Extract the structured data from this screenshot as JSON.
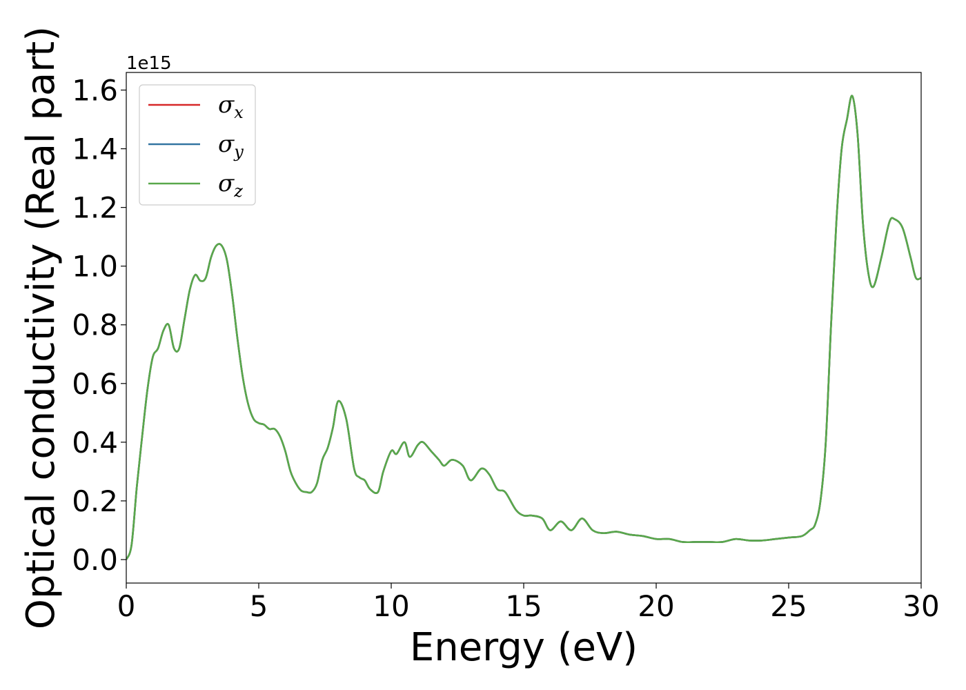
{
  "chart_data": {
    "type": "line",
    "xlabel": "Energy (eV)",
    "ylabel": "Optical conductivity (Real part)",
    "y_offset_label": "1e15",
    "xlim": [
      0,
      30
    ],
    "ylim": [
      -0.08,
      1.66
    ],
    "x_ticks": [
      0,
      5,
      10,
      15,
      20,
      25,
      30
    ],
    "y_ticks": [
      0.0,
      0.2,
      0.4,
      0.6,
      0.8,
      1.0,
      1.2,
      1.4,
      1.6
    ],
    "x_tick_labels": [
      "0",
      "5",
      "10",
      "15",
      "20",
      "25",
      "30"
    ],
    "y_tick_labels": [
      "0.0",
      "0.2",
      "0.4",
      "0.6",
      "0.8",
      "1.0",
      "1.2",
      "1.4",
      "1.6"
    ],
    "legend_position": "upper-left",
    "grid": false,
    "series": [
      {
        "name": "σ_x",
        "symbol": "σ",
        "subscript": "x",
        "color": "#d62728",
        "x": [
          0,
          0.2,
          0.4,
          0.6,
          0.8,
          1.0,
          1.2,
          1.4,
          1.6,
          1.8,
          2.0,
          2.2,
          2.4,
          2.6,
          2.8,
          3.0,
          3.2,
          3.4,
          3.6,
          3.8,
          4.0,
          4.2,
          4.4,
          4.6,
          4.8,
          5.0,
          5.2,
          5.4,
          5.6,
          5.8,
          6.0,
          6.2,
          6.4,
          6.6,
          6.8,
          7.0,
          7.2,
          7.4,
          7.6,
          7.8,
          8.0,
          8.3,
          8.6,
          8.8,
          9.0,
          9.2,
          9.5,
          9.7,
          10.0,
          10.2,
          10.5,
          10.7,
          11.0,
          11.2,
          11.5,
          11.8,
          12.0,
          12.3,
          12.7,
          13.0,
          13.4,
          13.7,
          14.0,
          14.3,
          14.7,
          15.0,
          15.3,
          15.7,
          16.0,
          16.4,
          16.8,
          17.2,
          17.6,
          18.0,
          18.5,
          19.0,
          19.5,
          20.0,
          20.5,
          21.0,
          21.5,
          22.0,
          22.5,
          23.0,
          23.5,
          24.0,
          24.5,
          25.0,
          25.5,
          25.8,
          26.0,
          26.2,
          26.4,
          26.6,
          26.8,
          27.0,
          27.2,
          27.4,
          27.6,
          27.8,
          28.0,
          28.2,
          28.5,
          28.8,
          29.0,
          29.3,
          29.6,
          29.8,
          30.0
        ],
        "y": [
          0.0,
          0.05,
          0.25,
          0.42,
          0.58,
          0.69,
          0.72,
          0.78,
          0.8,
          0.72,
          0.72,
          0.82,
          0.92,
          0.97,
          0.95,
          0.96,
          1.03,
          1.07,
          1.07,
          1.02,
          0.9,
          0.75,
          0.62,
          0.53,
          0.48,
          0.465,
          0.46,
          0.445,
          0.445,
          0.42,
          0.37,
          0.3,
          0.26,
          0.235,
          0.23,
          0.23,
          0.26,
          0.34,
          0.38,
          0.45,
          0.54,
          0.48,
          0.31,
          0.28,
          0.27,
          0.24,
          0.23,
          0.3,
          0.37,
          0.36,
          0.4,
          0.35,
          0.39,
          0.4,
          0.37,
          0.34,
          0.32,
          0.34,
          0.32,
          0.27,
          0.31,
          0.29,
          0.24,
          0.23,
          0.17,
          0.15,
          0.15,
          0.14,
          0.1,
          0.13,
          0.1,
          0.14,
          0.1,
          0.09,
          0.095,
          0.085,
          0.08,
          0.07,
          0.07,
          0.06,
          0.06,
          0.06,
          0.06,
          0.07,
          0.065,
          0.065,
          0.07,
          0.075,
          0.08,
          0.1,
          0.12,
          0.2,
          0.4,
          0.8,
          1.15,
          1.4,
          1.5,
          1.58,
          1.45,
          1.15,
          0.98,
          0.93,
          1.03,
          1.15,
          1.16,
          1.13,
          1.03,
          0.96,
          0.96
        ]
      },
      {
        "name": "σ_y",
        "symbol": "σ",
        "subscript": "y",
        "color": "#3274a1",
        "x": [
          0,
          0.2,
          0.4,
          0.6,
          0.8,
          1.0,
          1.2,
          1.4,
          1.6,
          1.8,
          2.0,
          2.2,
          2.4,
          2.6,
          2.8,
          3.0,
          3.2,
          3.4,
          3.6,
          3.8,
          4.0,
          4.2,
          4.4,
          4.6,
          4.8,
          5.0,
          5.2,
          5.4,
          5.6,
          5.8,
          6.0,
          6.2,
          6.4,
          6.6,
          6.8,
          7.0,
          7.2,
          7.4,
          7.6,
          7.8,
          8.0,
          8.3,
          8.6,
          8.8,
          9.0,
          9.2,
          9.5,
          9.7,
          10.0,
          10.2,
          10.5,
          10.7,
          11.0,
          11.2,
          11.5,
          11.8,
          12.0,
          12.3,
          12.7,
          13.0,
          13.4,
          13.7,
          14.0,
          14.3,
          14.7,
          15.0,
          15.3,
          15.7,
          16.0,
          16.4,
          16.8,
          17.2,
          17.6,
          18.0,
          18.5,
          19.0,
          19.5,
          20.0,
          20.5,
          21.0,
          21.5,
          22.0,
          22.5,
          23.0,
          23.5,
          24.0,
          24.5,
          25.0,
          25.5,
          25.8,
          26.0,
          26.2,
          26.4,
          26.6,
          26.8,
          27.0,
          27.2,
          27.4,
          27.6,
          27.8,
          28.0,
          28.2,
          28.5,
          28.8,
          29.0,
          29.3,
          29.6,
          29.8,
          30.0
        ],
        "y": [
          0.0,
          0.05,
          0.25,
          0.42,
          0.58,
          0.69,
          0.72,
          0.78,
          0.8,
          0.72,
          0.72,
          0.82,
          0.92,
          0.97,
          0.95,
          0.96,
          1.03,
          1.07,
          1.07,
          1.02,
          0.9,
          0.75,
          0.62,
          0.53,
          0.48,
          0.465,
          0.46,
          0.445,
          0.445,
          0.42,
          0.37,
          0.3,
          0.26,
          0.235,
          0.23,
          0.23,
          0.26,
          0.34,
          0.38,
          0.45,
          0.54,
          0.48,
          0.31,
          0.28,
          0.27,
          0.24,
          0.23,
          0.3,
          0.37,
          0.36,
          0.4,
          0.35,
          0.39,
          0.4,
          0.37,
          0.34,
          0.32,
          0.34,
          0.32,
          0.27,
          0.31,
          0.29,
          0.24,
          0.23,
          0.17,
          0.15,
          0.15,
          0.14,
          0.1,
          0.13,
          0.1,
          0.14,
          0.1,
          0.09,
          0.095,
          0.085,
          0.08,
          0.07,
          0.07,
          0.06,
          0.06,
          0.06,
          0.06,
          0.07,
          0.065,
          0.065,
          0.07,
          0.075,
          0.08,
          0.1,
          0.12,
          0.2,
          0.4,
          0.8,
          1.15,
          1.4,
          1.5,
          1.58,
          1.45,
          1.15,
          0.98,
          0.93,
          1.03,
          1.15,
          1.16,
          1.13,
          1.03,
          0.96,
          0.96
        ]
      },
      {
        "name": "σ_z",
        "symbol": "σ",
        "subscript": "z",
        "color": "#59a84b",
        "x": [
          0,
          0.2,
          0.4,
          0.6,
          0.8,
          1.0,
          1.2,
          1.4,
          1.6,
          1.8,
          2.0,
          2.2,
          2.4,
          2.6,
          2.8,
          3.0,
          3.2,
          3.4,
          3.6,
          3.8,
          4.0,
          4.2,
          4.4,
          4.6,
          4.8,
          5.0,
          5.2,
          5.4,
          5.6,
          5.8,
          6.0,
          6.2,
          6.4,
          6.6,
          6.8,
          7.0,
          7.2,
          7.4,
          7.6,
          7.8,
          8.0,
          8.3,
          8.6,
          8.8,
          9.0,
          9.2,
          9.5,
          9.7,
          10.0,
          10.2,
          10.5,
          10.7,
          11.0,
          11.2,
          11.5,
          11.8,
          12.0,
          12.3,
          12.7,
          13.0,
          13.4,
          13.7,
          14.0,
          14.3,
          14.7,
          15.0,
          15.3,
          15.7,
          16.0,
          16.4,
          16.8,
          17.2,
          17.6,
          18.0,
          18.5,
          19.0,
          19.5,
          20.0,
          20.5,
          21.0,
          21.5,
          22.0,
          22.5,
          23.0,
          23.5,
          24.0,
          24.5,
          25.0,
          25.5,
          25.8,
          26.0,
          26.2,
          26.4,
          26.6,
          26.8,
          27.0,
          27.2,
          27.4,
          27.6,
          27.8,
          28.0,
          28.2,
          28.5,
          28.8,
          29.0,
          29.3,
          29.6,
          29.8,
          30.0
        ],
        "y": [
          0.0,
          0.05,
          0.25,
          0.42,
          0.58,
          0.69,
          0.72,
          0.78,
          0.8,
          0.72,
          0.72,
          0.82,
          0.92,
          0.97,
          0.95,
          0.96,
          1.03,
          1.07,
          1.07,
          1.02,
          0.9,
          0.75,
          0.62,
          0.53,
          0.48,
          0.465,
          0.46,
          0.445,
          0.445,
          0.42,
          0.37,
          0.3,
          0.26,
          0.235,
          0.23,
          0.23,
          0.26,
          0.34,
          0.38,
          0.45,
          0.54,
          0.48,
          0.31,
          0.28,
          0.27,
          0.24,
          0.23,
          0.3,
          0.37,
          0.36,
          0.4,
          0.35,
          0.39,
          0.4,
          0.37,
          0.34,
          0.32,
          0.34,
          0.32,
          0.27,
          0.31,
          0.29,
          0.24,
          0.23,
          0.17,
          0.15,
          0.15,
          0.14,
          0.1,
          0.13,
          0.1,
          0.14,
          0.1,
          0.09,
          0.095,
          0.085,
          0.08,
          0.07,
          0.07,
          0.06,
          0.06,
          0.06,
          0.06,
          0.07,
          0.065,
          0.065,
          0.07,
          0.075,
          0.08,
          0.1,
          0.12,
          0.2,
          0.4,
          0.8,
          1.15,
          1.4,
          1.5,
          1.58,
          1.45,
          1.15,
          0.98,
          0.93,
          1.03,
          1.15,
          1.16,
          1.13,
          1.03,
          0.96,
          0.96
        ]
      }
    ]
  }
}
